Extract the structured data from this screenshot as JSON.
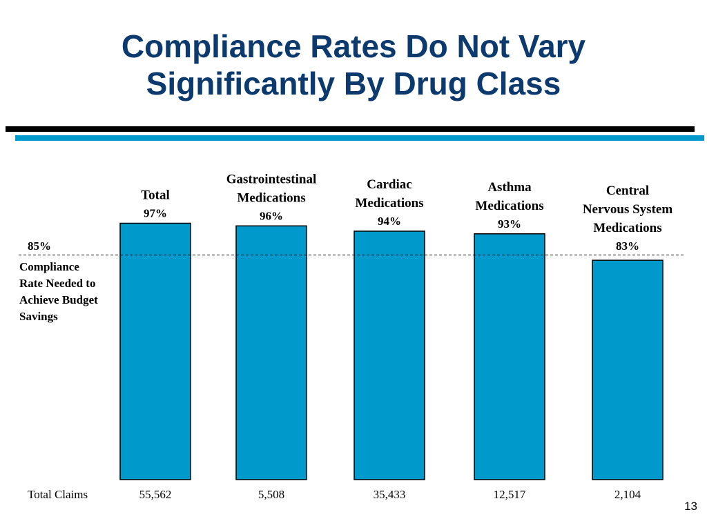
{
  "slide": {
    "title_line1": "Compliance Rates Do Not Vary",
    "title_line2": "Significantly By Drug Class",
    "number": "13",
    "accent_color": "#0099cc",
    "title_color": "#0d3a6e"
  },
  "chart_data": {
    "type": "bar",
    "categories": [
      [
        "Total"
      ],
      [
        "Gastrointestinal",
        "Medications"
      ],
      [
        "Cardiac",
        "Medications"
      ],
      [
        "Asthma",
        "Medications"
      ],
      [
        "Central",
        "Nervous System",
        "Medications"
      ]
    ],
    "values": [
      97,
      96,
      94,
      93,
      83
    ],
    "value_labels": [
      "97%",
      "96%",
      "94%",
      "93%",
      "83%"
    ],
    "bar_color": "#0099cc",
    "reference_line": {
      "value": 85,
      "label": "85%",
      "caption": [
        "Compliance",
        "Rate Needed to",
        "Achieve Budget",
        "Savings"
      ]
    },
    "claims": {
      "label": "Total Claims",
      "values": [
        "55,562",
        "5,508",
        "35,433",
        "12,517",
        "2,104"
      ]
    },
    "grid": false
  }
}
